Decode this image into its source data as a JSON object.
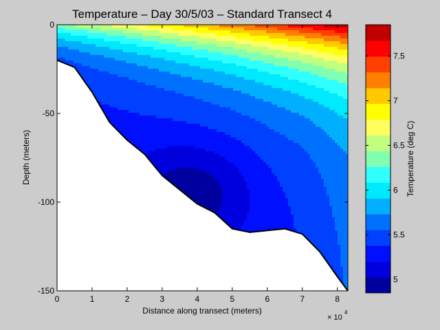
{
  "chart_data": {
    "type": "contour",
    "title": "Temperature – Day 30/5/03 – Standard Transect 4",
    "xlabel": "Distance along transect (meters)",
    "ylabel": "Depth (meters)",
    "x_exponent_label": "× 10",
    "x_exponent_power": "4",
    "xlim": [
      0,
      83000
    ],
    "ylim": [
      -150,
      0
    ],
    "xticks": [
      0,
      10000,
      20000,
      30000,
      40000,
      50000,
      60000,
      70000,
      80000
    ],
    "xtick_labels": [
      "0",
      "1",
      "2",
      "3",
      "4",
      "5",
      "6",
      "7",
      "8"
    ],
    "yticks": [
      0,
      -50,
      -100,
      -150
    ],
    "ytick_labels": [
      "0",
      "-50",
      "-100",
      "-150"
    ],
    "colorbar": {
      "label": "Temperature (deg C)",
      "range": [
        4.85,
        7.85
      ],
      "ticks": [
        5,
        5.5,
        6,
        6.5,
        7,
        7.5
      ],
      "tick_labels": [
        "5",
        "5.5",
        "6",
        "6.5",
        "7",
        "7.5"
      ],
      "colors": [
        "#00009f",
        "#0000df",
        "#0010ff",
        "#0040ff",
        "#0070ff",
        "#00b0ff",
        "#00eaff",
        "#30ffff",
        "#80ffb0",
        "#c0ff80",
        "#ffff60",
        "#ffff00",
        "#ffc800",
        "#ff8000",
        "#ff4000",
        "#ff0000",
        "#c00000"
      ]
    },
    "bathymetry": {
      "x": [
        0,
        5000,
        10000,
        15000,
        20000,
        25000,
        30000,
        35000,
        40000,
        45000,
        50000,
        55000,
        60000,
        65000,
        70000,
        75000,
        80000,
        83000
      ],
      "depth": [
        -20,
        -24,
        -38,
        -55,
        -65,
        -73,
        -85,
        -93,
        -101,
        -106,
        -115,
        -117,
        -116,
        -115,
        -118,
        -128,
        -142,
        -150
      ]
    },
    "surface_temperature_range": [
      6.4,
      7.85
    ],
    "coldest_core": {
      "x": 40000,
      "depth": -90,
      "temperature": 4.9
    }
  }
}
